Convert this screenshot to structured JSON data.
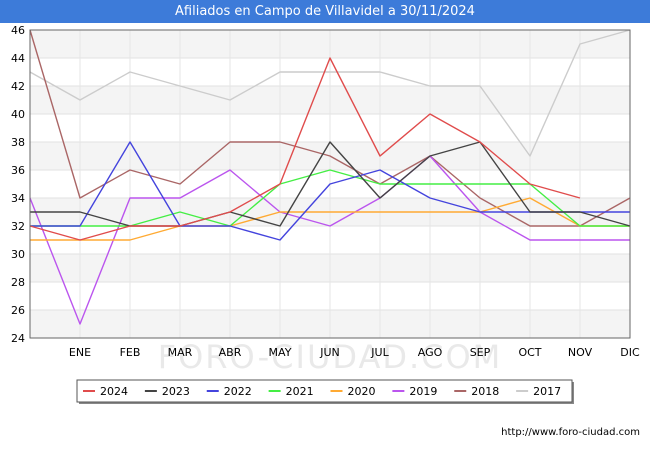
{
  "header": {
    "title": "Afiliados en Campo de Villavidel a 30/11/2024"
  },
  "watermark": "FORO-CIUDAD.COM",
  "source": "http://www.foro-ciudad.com",
  "chart_data": {
    "type": "line",
    "title": "Afiliados en Campo de Villavidel a 30/11/2024",
    "categories": [
      "",
      "ENE",
      "FEB",
      "MAR",
      "ABR",
      "MAY",
      "JUN",
      "JUL",
      "AGO",
      "SEP",
      "OCT",
      "NOV",
      "DIC"
    ],
    "ylim": [
      24,
      46
    ],
    "yticks": [
      24,
      26,
      28,
      30,
      32,
      34,
      36,
      38,
      40,
      42,
      44,
      46
    ],
    "grid": true,
    "legend": "bottom",
    "series": [
      {
        "name": "2024",
        "color": "#e04c4c",
        "values": [
          32,
          31,
          32,
          32,
          33,
          35,
          44,
          37,
          40,
          38,
          35,
          34,
          null
        ]
      },
      {
        "name": "2023",
        "color": "#444444",
        "values": [
          33,
          33,
          32,
          32,
          33,
          32,
          38,
          34,
          37,
          38,
          33,
          33,
          32
        ]
      },
      {
        "name": "2022",
        "color": "#4444dd",
        "values": [
          32,
          32,
          38,
          32,
          32,
          31,
          35,
          36,
          34,
          33,
          33,
          33,
          33
        ]
      },
      {
        "name": "2021",
        "color": "#44ee44",
        "values": [
          32,
          32,
          32,
          33,
          32,
          35,
          36,
          35,
          35,
          35,
          35,
          32,
          32
        ]
      },
      {
        "name": "2020",
        "color": "#ffaa33",
        "values": [
          31,
          31,
          31,
          32,
          32,
          33,
          33,
          33,
          33,
          33,
          34,
          32,
          32
        ]
      },
      {
        "name": "2019",
        "color": "#bb55ee",
        "values": [
          34,
          25,
          34,
          34,
          36,
          33,
          32,
          34,
          37,
          33,
          31,
          31,
          31
        ]
      },
      {
        "name": "2018",
        "color": "#aa6666",
        "values": [
          46,
          34,
          36,
          35,
          38,
          38,
          37,
          35,
          37,
          34,
          32,
          32,
          34
        ]
      },
      {
        "name": "2017",
        "color": "#cccccc",
        "values": [
          43,
          41,
          43,
          42,
          41,
          43,
          43,
          43,
          42,
          42,
          37,
          45,
          46
        ]
      }
    ]
  }
}
